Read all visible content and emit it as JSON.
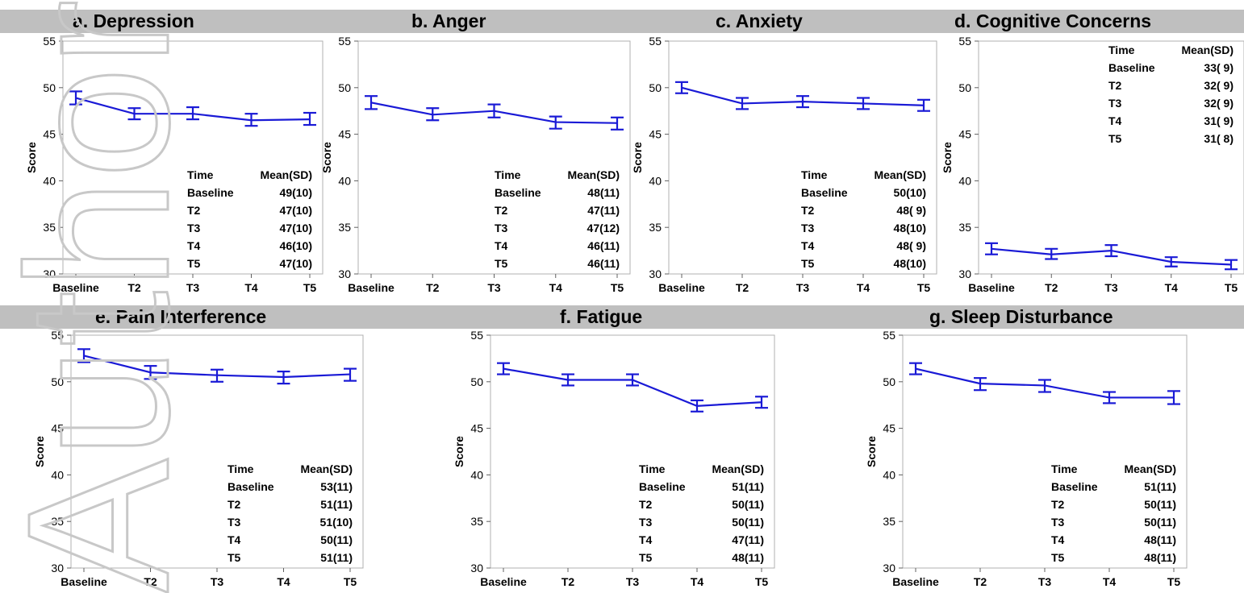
{
  "series_color": "#1a1ad6",
  "band_color": "#bfbfbf",
  "watermark": {
    "text": "Author Manuscript"
  },
  "chart_data": [
    {
      "id": "a",
      "type": "line",
      "title": "a. Depression",
      "ylabel": "Score",
      "ylim": [
        30,
        55
      ],
      "yticks": [
        30,
        35,
        40,
        45,
        50,
        55
      ],
      "categories": [
        "Baseline",
        "T2",
        "T3",
        "T4",
        "T5"
      ],
      "values": [
        48.9,
        47.2,
        47.2,
        46.5,
        46.6
      ],
      "ci_low": [
        48.2,
        46.6,
        46.6,
        45.9,
        46.0
      ],
      "ci_high": [
        49.6,
        47.8,
        47.9,
        47.2,
        47.3
      ],
      "table": {
        "headers": [
          "Time",
          "Mean(SD)"
        ],
        "rows": [
          [
            "Baseline",
            "49(10)"
          ],
          [
            "T2",
            "47(10)"
          ],
          [
            "T3",
            "47(10)"
          ],
          [
            "T4",
            "46(10)"
          ],
          [
            "T5",
            "47(10)"
          ]
        ]
      },
      "table_position": "bottom-right"
    },
    {
      "id": "b",
      "type": "line",
      "title": "b. Anger",
      "ylabel": "Score",
      "ylim": [
        30,
        55
      ],
      "yticks": [
        30,
        35,
        40,
        45,
        50,
        55
      ],
      "categories": [
        "Baseline",
        "T2",
        "T3",
        "T4",
        "T5"
      ],
      "values": [
        48.4,
        47.1,
        47.5,
        46.3,
        46.2
      ],
      "ci_low": [
        47.7,
        46.5,
        46.8,
        45.6,
        45.5
      ],
      "ci_high": [
        49.1,
        47.8,
        48.2,
        46.9,
        46.8
      ],
      "table": {
        "headers": [
          "Time",
          "Mean(SD)"
        ],
        "rows": [
          [
            "Baseline",
            "48(11)"
          ],
          [
            "T2",
            "47(11)"
          ],
          [
            "T3",
            "47(12)"
          ],
          [
            "T4",
            "46(11)"
          ],
          [
            "T5",
            "46(11)"
          ]
        ]
      },
      "table_position": "bottom-right"
    },
    {
      "id": "c",
      "type": "line",
      "title": "c. Anxiety",
      "ylabel": "Score",
      "ylim": [
        30,
        55
      ],
      "yticks": [
        30,
        35,
        40,
        45,
        50,
        55
      ],
      "categories": [
        "Baseline",
        "T2",
        "T3",
        "T4",
        "T5"
      ],
      "values": [
        50.0,
        48.3,
        48.5,
        48.3,
        48.1
      ],
      "ci_low": [
        49.4,
        47.7,
        47.9,
        47.7,
        47.5
      ],
      "ci_high": [
        50.6,
        48.9,
        49.1,
        48.9,
        48.7
      ],
      "table": {
        "headers": [
          "Time",
          "Mean(SD)"
        ],
        "rows": [
          [
            "Baseline",
            "50(10)"
          ],
          [
            "T2",
            "48( 9)"
          ],
          [
            "T3",
            "48(10)"
          ],
          [
            "T4",
            "48( 9)"
          ],
          [
            "T5",
            "48(10)"
          ]
        ]
      },
      "table_position": "bottom-right"
    },
    {
      "id": "d",
      "type": "line",
      "title": "d. Cognitive Concerns",
      "ylabel": "Score",
      "ylim": [
        30,
        55
      ],
      "yticks": [
        30,
        35,
        40,
        45,
        50,
        55
      ],
      "categories": [
        "Baseline",
        "T2",
        "T3",
        "T4",
        "T5"
      ],
      "values": [
        32.7,
        32.1,
        32.5,
        31.3,
        31.0
      ],
      "ci_low": [
        32.1,
        31.6,
        31.9,
        30.8,
        30.5
      ],
      "ci_high": [
        33.3,
        32.7,
        33.1,
        31.8,
        31.5
      ],
      "table": {
        "headers": [
          "Time",
          "Mean(SD)"
        ],
        "rows": [
          [
            "Baseline",
            "33( 9)"
          ],
          [
            "T2",
            "32( 9)"
          ],
          [
            "T3",
            "32( 9)"
          ],
          [
            "T4",
            "31( 9)"
          ],
          [
            "T5",
            "31( 8)"
          ]
        ]
      },
      "table_position": "top-right"
    },
    {
      "id": "e",
      "type": "line",
      "title": "e. Pain Interference",
      "ylabel": "Score",
      "ylim": [
        30,
        55
      ],
      "yticks": [
        30,
        35,
        40,
        45,
        50,
        55
      ],
      "categories": [
        "Baseline",
        "T2",
        "T3",
        "T4",
        "T5"
      ],
      "values": [
        52.8,
        51.0,
        50.7,
        50.5,
        50.8
      ],
      "ci_low": [
        52.1,
        50.3,
        50.0,
        49.8,
        50.1
      ],
      "ci_high": [
        53.5,
        51.7,
        51.3,
        51.1,
        51.4
      ],
      "table": {
        "headers": [
          "Time",
          "Mean(SD)"
        ],
        "rows": [
          [
            "Baseline",
            "53(11)"
          ],
          [
            "T2",
            "51(11)"
          ],
          [
            "T3",
            "51(10)"
          ],
          [
            "T4",
            "50(11)"
          ],
          [
            "T5",
            "51(11)"
          ]
        ]
      },
      "table_position": "bottom-right"
    },
    {
      "id": "f",
      "type": "line",
      "title": "f. Fatigue",
      "ylabel": "Score",
      "ylim": [
        30,
        55
      ],
      "yticks": [
        30,
        35,
        40,
        45,
        50,
        55
      ],
      "categories": [
        "Baseline",
        "T2",
        "T3",
        "T4",
        "T5"
      ],
      "values": [
        51.4,
        50.2,
        50.2,
        47.4,
        47.8
      ],
      "ci_low": [
        50.8,
        49.6,
        49.6,
        46.8,
        47.2
      ],
      "ci_high": [
        52.0,
        50.8,
        50.8,
        48.0,
        48.4
      ],
      "table": {
        "headers": [
          "Time",
          "Mean(SD)"
        ],
        "rows": [
          [
            "Baseline",
            "51(11)"
          ],
          [
            "T2",
            "50(11)"
          ],
          [
            "T3",
            "50(11)"
          ],
          [
            "T4",
            "47(11)"
          ],
          [
            "T5",
            "48(11)"
          ]
        ]
      },
      "table_position": "bottom-right"
    },
    {
      "id": "g",
      "type": "line",
      "title": "g. Sleep Disturbance",
      "ylabel": "Score",
      "ylim": [
        30,
        55
      ],
      "yticks": [
        30,
        35,
        40,
        45,
        50,
        55
      ],
      "categories": [
        "Baseline",
        "T2",
        "T3",
        "T4",
        "T5"
      ],
      "values": [
        51.4,
        49.8,
        49.6,
        48.3,
        48.3
      ],
      "ci_low": [
        50.8,
        49.1,
        48.9,
        47.7,
        47.6
      ],
      "ci_high": [
        52.0,
        50.4,
        50.2,
        48.9,
        49.0
      ],
      "table": {
        "headers": [
          "Time",
          "Mean(SD)"
        ],
        "rows": [
          [
            "Baseline",
            "51(11)"
          ],
          [
            "T2",
            "50(11)"
          ],
          [
            "T3",
            "50(11)"
          ],
          [
            "T4",
            "48(11)"
          ],
          [
            "T5",
            "48(11)"
          ]
        ]
      },
      "table_position": "bottom-right"
    }
  ]
}
